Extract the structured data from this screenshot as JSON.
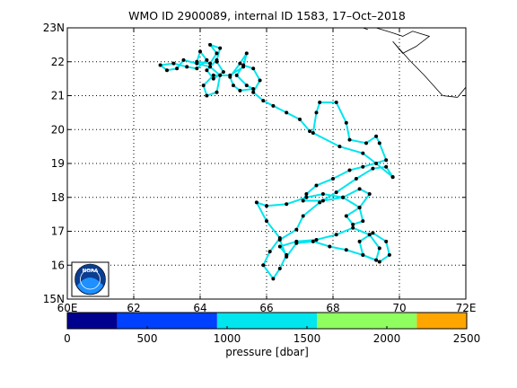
{
  "title": "WMO ID 2900089, internal ID 1583, 17–Oct–2018",
  "chart_data": {
    "type": "scatter",
    "title": "WMO ID 2900089, internal ID 1583, 17–Oct–2018",
    "xlim": [
      60,
      72
    ],
    "ylim": [
      15,
      23
    ],
    "x_ticks": [
      {
        "value": 60,
        "label": "60E"
      },
      {
        "value": 62,
        "label": "62"
      },
      {
        "value": 64,
        "label": "64"
      },
      {
        "value": 66,
        "label": "66"
      },
      {
        "value": 68,
        "label": "68"
      },
      {
        "value": 70,
        "label": "70"
      },
      {
        "value": 72,
        "label": "72E"
      }
    ],
    "y_ticks": [
      {
        "value": 15,
        "label": "15N"
      },
      {
        "value": 16,
        "label": "16"
      },
      {
        "value": 17,
        "label": "17"
      },
      {
        "value": 18,
        "label": "18"
      },
      {
        "value": 19,
        "label": "19"
      },
      {
        "value": 20,
        "label": "20"
      },
      {
        "value": 21,
        "label": "21"
      },
      {
        "value": 22,
        "label": "22"
      },
      {
        "value": 23,
        "label": "23N"
      }
    ],
    "grid": true,
    "series": [
      {
        "values": [
          [
            69.8,
            18.6
          ],
          [
            69.3,
            19.0
          ],
          [
            68.9,
            19.3
          ],
          [
            68.2,
            19.5
          ],
          [
            67.4,
            19.9
          ],
          [
            67.5,
            20.5
          ],
          [
            67.6,
            20.8
          ],
          [
            68.1,
            20.8
          ],
          [
            68.4,
            20.2
          ],
          [
            68.5,
            19.7
          ],
          [
            69.0,
            19.6
          ],
          [
            69.3,
            19.8
          ],
          [
            69.4,
            19.6
          ],
          [
            69.6,
            19.1
          ],
          [
            68.9,
            18.9
          ],
          [
            68.5,
            18.8
          ],
          [
            68.0,
            18.55
          ],
          [
            67.5,
            18.35
          ],
          [
            67.2,
            18.1
          ],
          [
            67.1,
            17.9
          ],
          [
            67.7,
            17.9
          ],
          [
            68.3,
            18.0
          ],
          [
            68.8,
            18.25
          ],
          [
            69.1,
            18.1
          ],
          [
            68.8,
            17.7
          ],
          [
            68.4,
            17.45
          ],
          [
            68.6,
            17.2
          ],
          [
            68.9,
            17.3
          ],
          [
            68.8,
            17.7
          ],
          [
            68.3,
            18.0
          ],
          [
            67.7,
            18.1
          ],
          [
            67.2,
            18.0
          ],
          [
            66.6,
            17.8
          ],
          [
            66.0,
            17.75
          ],
          [
            65.7,
            17.85
          ],
          [
            66.0,
            17.3
          ],
          [
            66.4,
            16.8
          ],
          [
            66.1,
            16.4
          ],
          [
            65.9,
            16.0
          ],
          [
            66.2,
            15.6
          ],
          [
            66.4,
            15.9
          ],
          [
            66.6,
            16.3
          ],
          [
            66.4,
            16.55
          ],
          [
            66.9,
            16.7
          ],
          [
            67.5,
            16.75
          ],
          [
            68.1,
            16.9
          ],
          [
            68.6,
            17.1
          ],
          [
            69.1,
            16.9
          ],
          [
            69.4,
            16.5
          ],
          [
            69.3,
            16.15
          ],
          [
            68.9,
            16.3
          ],
          [
            68.8,
            16.7
          ],
          [
            69.2,
            16.95
          ],
          [
            69.6,
            16.7
          ],
          [
            69.7,
            16.3
          ],
          [
            69.4,
            16.1
          ],
          [
            68.9,
            16.3
          ],
          [
            68.4,
            16.45
          ],
          [
            67.9,
            16.55
          ],
          [
            67.4,
            16.7
          ],
          [
            66.9,
            16.65
          ],
          [
            66.6,
            16.25
          ],
          [
            66.4,
            16.75
          ],
          [
            66.9,
            17.05
          ],
          [
            67.1,
            17.45
          ],
          [
            67.6,
            17.85
          ],
          [
            68.1,
            18.15
          ],
          [
            68.7,
            18.55
          ],
          [
            69.2,
            18.85
          ],
          [
            69.6,
            18.9
          ],
          [
            69.8,
            18.6
          ]
        ],
        "color": "#00e5ee"
      },
      {
        "values": [
          [
            67.3,
            19.95
          ],
          [
            67.0,
            20.3
          ],
          [
            66.6,
            20.5
          ],
          [
            66.2,
            20.7
          ],
          [
            65.9,
            20.85
          ],
          [
            65.6,
            21.1
          ],
          [
            65.8,
            21.45
          ],
          [
            65.6,
            21.8
          ],
          [
            65.3,
            21.9
          ],
          [
            65.1,
            21.6
          ],
          [
            65.4,
            21.3
          ],
          [
            65.6,
            21.2
          ],
          [
            65.2,
            21.15
          ],
          [
            65.0,
            21.3
          ],
          [
            64.9,
            21.55
          ],
          [
            65.2,
            21.95
          ],
          [
            65.4,
            22.25
          ],
          [
            65.3,
            21.85
          ],
          [
            64.9,
            21.6
          ],
          [
            64.4,
            21.6
          ],
          [
            64.1,
            21.3
          ],
          [
            64.2,
            21.0
          ],
          [
            64.5,
            21.1
          ],
          [
            64.6,
            21.6
          ],
          [
            64.3,
            21.85
          ],
          [
            63.9,
            21.95
          ],
          [
            63.5,
            22.05
          ],
          [
            63.3,
            21.8
          ],
          [
            63.0,
            21.75
          ],
          [
            62.8,
            21.9
          ],
          [
            63.2,
            21.95
          ],
          [
            63.6,
            21.85
          ],
          [
            63.9,
            21.8
          ],
          [
            64.2,
            22.05
          ],
          [
            64.0,
            22.3
          ],
          [
            63.9,
            22.0
          ],
          [
            64.3,
            21.95
          ],
          [
            64.5,
            22.25
          ],
          [
            64.3,
            22.5
          ],
          [
            64.6,
            22.4
          ],
          [
            64.5,
            22.05
          ],
          [
            64.2,
            21.75
          ],
          [
            64.4,
            21.5
          ],
          [
            64.7,
            21.7
          ],
          [
            64.5,
            22.0
          ]
        ],
        "color": "#00e5ee"
      }
    ],
    "coastline": [
      [
        [
          69.3,
          23.0
        ],
        [
          69.8,
          22.85
        ],
        [
          70.1,
          22.75
        ],
        [
          70.4,
          22.9
        ],
        [
          70.9,
          22.75
        ],
        [
          70.5,
          22.45
        ],
        [
          70.1,
          22.25
        ],
        [
          69.8,
          22.6
        ],
        [
          70.3,
          22.05
        ],
        [
          70.75,
          21.6
        ],
        [
          71.3,
          21.0
        ],
        [
          71.75,
          20.95
        ],
        [
          72.0,
          21.25
        ]
      ],
      [
        [
          68.9,
          23.0
        ],
        [
          69.05,
          22.95
        ]
      ]
    ],
    "noaa_logo": {
      "text": "NOAA",
      "position": "bottom-left"
    },
    "colorbar": {
      "label": "pressure [dbar]",
      "range": [
        0,
        2500
      ],
      "ticks": [
        {
          "value": 0,
          "label": "0"
        },
        {
          "value": 500,
          "label": "500"
        },
        {
          "value": 1000,
          "label": "1000"
        },
        {
          "value": 1500,
          "label": "1500"
        },
        {
          "value": 2000,
          "label": "2000"
        },
        {
          "value": 2500,
          "label": "2500"
        }
      ],
      "bands": [
        {
          "from": 0,
          "to": 312.5,
          "color": "#00008f"
        },
        {
          "from": 312.5,
          "to": 937.5,
          "color": "#0040ff"
        },
        {
          "from": 937.5,
          "to": 1562.5,
          "color": "#00e5ee"
        },
        {
          "from": 1562.5,
          "to": 2187.5,
          "color": "#8fff60"
        },
        {
          "from": 2187.5,
          "to": 2500,
          "color": "#ffa500"
        }
      ]
    }
  }
}
